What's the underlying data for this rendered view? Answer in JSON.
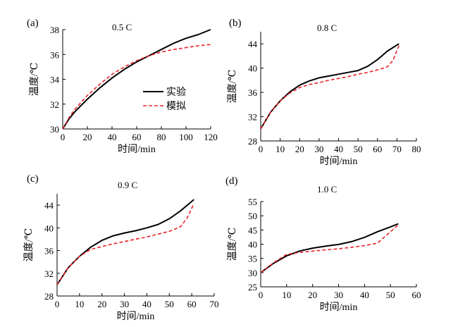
{
  "legend": {
    "experimental": "实验",
    "simulation": "模拟"
  },
  "colors": {
    "experimental": "#000000",
    "simulation": "#e8232a"
  },
  "chart_data": [
    {
      "type": "line",
      "panel": "(a)",
      "rate_label": "0.5 C",
      "xlabel": "时间/min",
      "ylabel": "温度/℃",
      "xlim": [
        0,
        120
      ],
      "ylim": [
        30,
        38
      ],
      "xticks": [
        0,
        20,
        40,
        60,
        80,
        100,
        120
      ],
      "yticks": [
        30,
        32,
        34,
        36,
        38
      ],
      "series": [
        {
          "name": "实验",
          "style": "solid",
          "x": [
            0,
            5,
            10,
            20,
            30,
            40,
            50,
            60,
            70,
            80,
            90,
            100,
            110,
            120
          ],
          "y": [
            30.0,
            30.8,
            31.4,
            32.4,
            33.3,
            34.1,
            34.8,
            35.4,
            35.9,
            36.4,
            36.9,
            37.3,
            37.6,
            38.0
          ]
        },
        {
          "name": "模拟",
          "style": "dashed",
          "x": [
            0,
            5,
            10,
            20,
            30,
            40,
            50,
            60,
            70,
            80,
            90,
            100,
            110,
            120
          ],
          "y": [
            30.0,
            30.9,
            31.6,
            32.7,
            33.6,
            34.4,
            35.0,
            35.5,
            35.9,
            36.2,
            36.4,
            36.55,
            36.7,
            36.8
          ]
        }
      ]
    },
    {
      "type": "line",
      "panel": "(b)",
      "rate_label": "0.8 C",
      "xlabel": "时间/min",
      "ylabel": "温度/℃",
      "xlim": [
        0,
        80
      ],
      "ylim": [
        28,
        46
      ],
      "xticks": [
        0,
        10,
        20,
        30,
        40,
        50,
        60,
        70,
        80
      ],
      "yticks": [
        28,
        32,
        36,
        40,
        44
      ],
      "series": [
        {
          "name": "实验",
          "style": "solid",
          "x": [
            0,
            5,
            10,
            15,
            20,
            25,
            30,
            35,
            40,
            45,
            50,
            55,
            60,
            65,
            71
          ],
          "y": [
            30.0,
            32.7,
            34.6,
            36.1,
            37.2,
            37.9,
            38.4,
            38.7,
            39.0,
            39.3,
            39.6,
            40.3,
            41.4,
            42.8,
            44.0
          ]
        },
        {
          "name": "模拟",
          "style": "dashed",
          "x": [
            0,
            5,
            10,
            15,
            20,
            25,
            30,
            35,
            40,
            45,
            50,
            55,
            60,
            65,
            68,
            71
          ],
          "y": [
            30.0,
            32.7,
            34.6,
            35.9,
            36.8,
            37.3,
            37.6,
            38.0,
            38.3,
            38.6,
            39.0,
            39.3,
            39.7,
            40.2,
            41.3,
            43.7
          ]
        }
      ]
    },
    {
      "type": "line",
      "panel": "(c)",
      "rate_label": "0.9 C",
      "xlabel": "时间/min",
      "ylabel": "温度/℃",
      "xlim": [
        0,
        70
      ],
      "ylim": [
        28,
        46
      ],
      "xticks": [
        0,
        10,
        20,
        30,
        40,
        50,
        60,
        70
      ],
      "yticks": [
        28,
        32,
        36,
        40,
        44
      ],
      "series": [
        {
          "name": "实验",
          "style": "solid",
          "x": [
            0,
            5,
            10,
            15,
            20,
            25,
            30,
            35,
            40,
            45,
            50,
            55,
            58,
            61
          ],
          "y": [
            30.0,
            33.0,
            35.0,
            36.6,
            37.8,
            38.6,
            39.1,
            39.5,
            40.0,
            40.6,
            41.6,
            43.0,
            44.0,
            45.0
          ]
        },
        {
          "name": "模拟",
          "style": "dashed",
          "x": [
            0,
            5,
            10,
            15,
            20,
            25,
            30,
            35,
            40,
            45,
            50,
            55,
            58,
            61
          ],
          "y": [
            30.0,
            33.0,
            35.0,
            36.2,
            36.7,
            37.2,
            37.6,
            38.0,
            38.4,
            38.9,
            39.4,
            40.2,
            41.8,
            44.3
          ]
        }
      ]
    },
    {
      "type": "line",
      "panel": "(d)",
      "rate_label": "1.0 C",
      "xlabel": "时间/min",
      "ylabel": "温度/℃",
      "xlim": [
        0,
        60
      ],
      "ylim": [
        25,
        55
      ],
      "xticks": [
        0,
        10,
        20,
        30,
        40,
        50,
        60
      ],
      "yticks": [
        25,
        30,
        35,
        40,
        45,
        50,
        55
      ],
      "series": [
        {
          "name": "实验",
          "style": "solid",
          "x": [
            0,
            5,
            10,
            15,
            20,
            25,
            30,
            35,
            40,
            45,
            50,
            53
          ],
          "y": [
            30.0,
            33.3,
            35.9,
            37.6,
            38.6,
            39.3,
            39.9,
            40.9,
            42.4,
            44.4,
            46.1,
            47.2
          ]
        },
        {
          "name": "模拟",
          "style": "dashed",
          "x": [
            0,
            5,
            10,
            15,
            20,
            25,
            30,
            35,
            40,
            45,
            48,
            53
          ],
          "y": [
            30.0,
            33.5,
            36.4,
            37.1,
            37.6,
            38.0,
            38.4,
            38.9,
            39.5,
            40.4,
            42.8,
            46.8
          ]
        }
      ]
    }
  ]
}
